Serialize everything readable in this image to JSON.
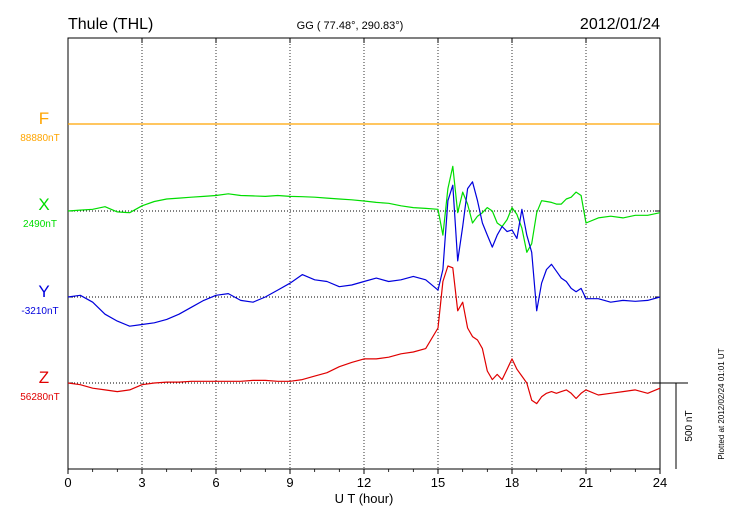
{
  "header": {
    "station": "Thule (THL)",
    "coords": "GG ( 77.48°, 290.83°)",
    "date": "2012/01/24"
  },
  "footer": {
    "plotted": "Plotted at 2012/02/24 01:01  UT"
  },
  "colors": {
    "F": "#ffa500",
    "X": "#00dd00",
    "Y": "#0000dd",
    "Z": "#e00000",
    "axis": "#000000"
  },
  "chart_data": {
    "type": "line",
    "xlabel": "U T (hour)",
    "xlim": [
      0,
      24
    ],
    "x_ticks": [
      "0",
      "3",
      "6",
      "9",
      "12",
      "15",
      "18",
      "21",
      "24"
    ],
    "y_unit": "nT",
    "scale_bar": "500 nT",
    "series": [
      {
        "name": "F",
        "baseline_label": "88880nT",
        "baseline": 88880,
        "x": [
          0,
          24
        ],
        "values": [
          88880,
          88880
        ]
      },
      {
        "name": "X",
        "baseline_label": "2490nT",
        "baseline": 2490,
        "x": [
          0,
          0.5,
          1,
          1.5,
          2,
          2.5,
          3,
          3.5,
          4,
          4.5,
          5,
          5.5,
          6,
          6.5,
          7,
          7.5,
          8,
          8.5,
          9,
          9.5,
          10,
          10.5,
          11,
          11.5,
          12,
          12.5,
          13,
          13.5,
          14,
          14.5,
          15,
          15.2,
          15.4,
          15.6,
          15.8,
          16,
          16.2,
          16.4,
          16.6,
          16.8,
          17,
          17.2,
          17.4,
          17.6,
          17.8,
          18,
          18.2,
          18.4,
          18.6,
          18.8,
          19,
          19.2,
          19.4,
          19.6,
          19.8,
          20,
          20.2,
          20.4,
          20.6,
          20.8,
          21,
          21.5,
          22,
          22.5,
          23,
          23.5,
          24
        ],
        "values": [
          2490,
          2495,
          2500,
          2515,
          2485,
          2480,
          2520,
          2545,
          2560,
          2565,
          2570,
          2575,
          2580,
          2590,
          2580,
          2578,
          2575,
          2580,
          2575,
          2573,
          2570,
          2565,
          2560,
          2555,
          2548,
          2540,
          2535,
          2520,
          2510,
          2505,
          2500,
          2350,
          2620,
          2750,
          2480,
          2600,
          2530,
          2420,
          2460,
          2480,
          2510,
          2490,
          2420,
          2400,
          2440,
          2510,
          2470,
          2390,
          2250,
          2300,
          2480,
          2550,
          2545,
          2540,
          2530,
          2530,
          2560,
          2570,
          2600,
          2580,
          2420,
          2450,
          2460,
          2450,
          2465,
          2465,
          2480
        ]
      },
      {
        "name": "Y",
        "baseline_label": "-3210nT",
        "baseline": -3210,
        "x": [
          0,
          0.5,
          1,
          1.5,
          2,
          2.5,
          3,
          3.5,
          4,
          4.5,
          5,
          5.5,
          6,
          6.5,
          7,
          7.5,
          8,
          8.5,
          9,
          9.5,
          10,
          10.5,
          11,
          11.5,
          12,
          12.5,
          13,
          13.5,
          14,
          14.5,
          15,
          15.2,
          15.4,
          15.6,
          15.8,
          16,
          16.2,
          16.4,
          16.6,
          16.8,
          17,
          17.2,
          17.4,
          17.6,
          17.8,
          18,
          18.2,
          18.4,
          18.6,
          18.8,
          19,
          19.2,
          19.4,
          19.6,
          19.8,
          20,
          20.2,
          20.4,
          20.6,
          20.8,
          21,
          21.5,
          22,
          22.5,
          23,
          23.5,
          24
        ],
        "values": [
          -3210,
          -3200,
          -3240,
          -3310,
          -3350,
          -3380,
          -3370,
          -3360,
          -3340,
          -3310,
          -3270,
          -3230,
          -3200,
          -3190,
          -3230,
          -3240,
          -3210,
          -3170,
          -3130,
          -3080,
          -3110,
          -3120,
          -3150,
          -3140,
          -3120,
          -3100,
          -3120,
          -3110,
          -3090,
          -3110,
          -3170,
          -3050,
          -2650,
          -2560,
          -3000,
          -2800,
          -2580,
          -2540,
          -2650,
          -2780,
          -2850,
          -2920,
          -2850,
          -2800,
          -2830,
          -2820,
          -2870,
          -2700,
          -2850,
          -2950,
          -3290,
          -3130,
          -3050,
          -3020,
          -3060,
          -3100,
          -3120,
          -3160,
          -3180,
          -3160,
          -3220,
          -3220,
          -3240,
          -3230,
          -3235,
          -3230,
          -3210
        ]
      },
      {
        "name": "Z",
        "baseline_label": "56280nT",
        "baseline": 56280,
        "x": [
          0,
          0.5,
          1,
          1.5,
          2,
          2.5,
          3,
          3.5,
          4,
          4.5,
          5,
          5.5,
          6,
          6.5,
          7,
          7.5,
          8,
          8.5,
          9,
          9.5,
          10,
          10.5,
          11,
          11.5,
          12,
          12.5,
          13,
          13.5,
          14,
          14.5,
          15,
          15.2,
          15.4,
          15.6,
          15.8,
          16,
          16.2,
          16.4,
          16.6,
          16.8,
          17,
          17.2,
          17.4,
          17.6,
          17.8,
          18,
          18.2,
          18.4,
          18.6,
          18.8,
          19,
          19.2,
          19.4,
          19.6,
          19.8,
          20,
          20.2,
          20.4,
          20.6,
          20.8,
          21,
          21.5,
          22,
          22.5,
          23,
          23.5,
          24
        ],
        "values": [
          56280,
          56270,
          56250,
          56240,
          56230,
          56240,
          56270,
          56280,
          56285,
          56285,
          56290,
          56290,
          56290,
          56290,
          56290,
          56295,
          56295,
          56290,
          56290,
          56300,
          56320,
          56340,
          56375,
          56400,
          56420,
          56420,
          56430,
          56450,
          56460,
          56480,
          56600,
          56870,
          56960,
          56950,
          56700,
          56750,
          56600,
          56550,
          56530,
          56480,
          56350,
          56300,
          56330,
          56300,
          56360,
          56420,
          56360,
          56320,
          56280,
          56180,
          56160,
          56200,
          56220,
          56230,
          56220,
          56230,
          56240,
          56220,
          56190,
          56220,
          56240,
          56210,
          56220,
          56230,
          56240,
          56220,
          56250
        ]
      }
    ]
  }
}
